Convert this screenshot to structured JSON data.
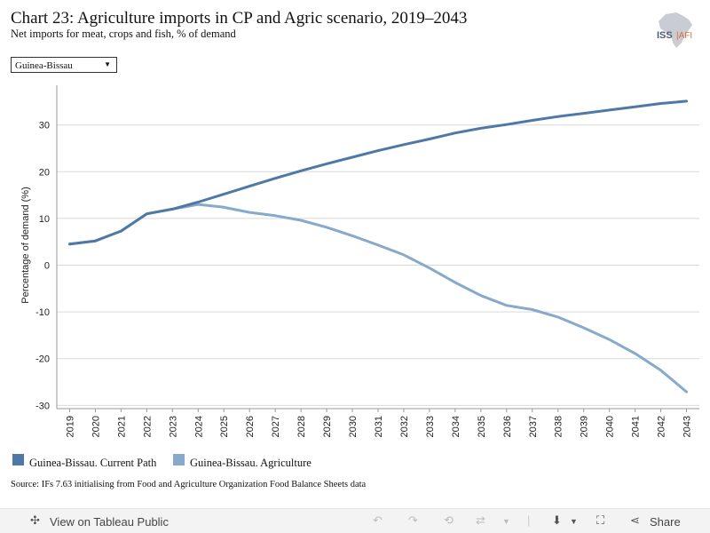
{
  "header": {
    "title": "Chart 23: Agriculture imports in CP and Agric scenario, 2019–2043",
    "subtitle": "Net imports for meat, crops and fish, % of demand",
    "logo_text": "ISS|AFI"
  },
  "filter": {
    "selected": "Guinea-Bissau"
  },
  "colors": {
    "current_path": "#4e79a7",
    "agriculture": "#86a9cc",
    "grid": "#d9d9d9"
  },
  "chart_data": {
    "type": "line",
    "x": [
      "2019",
      "2020",
      "2021",
      "2022",
      "2023",
      "2024",
      "2025",
      "2026",
      "2027",
      "2028",
      "2029",
      "2030",
      "2031",
      "2032",
      "2033",
      "2034",
      "2035",
      "2036",
      "2037",
      "2038",
      "2039",
      "2040",
      "2041",
      "2042",
      "2043"
    ],
    "series": [
      {
        "name": "Guinea-Bissau. Current Path",
        "values": [
          4.5,
          5.2,
          7.3,
          11.0,
          12.0,
          13.5,
          15.2,
          16.9,
          18.6,
          20.2,
          21.7,
          23.1,
          24.5,
          25.8,
          27.0,
          28.3,
          29.3,
          30.1,
          31.0,
          31.8,
          32.5,
          33.2,
          33.9,
          34.6,
          35.1
        ]
      },
      {
        "name": "Guinea-Bissau. Agriculture",
        "values": [
          4.5,
          5.2,
          7.3,
          11.0,
          12.0,
          13.0,
          12.4,
          11.3,
          10.6,
          9.6,
          8.1,
          6.3,
          4.3,
          2.2,
          -0.6,
          -3.7,
          -6.5,
          -8.6,
          -9.5,
          -11.1,
          -13.4,
          -15.9,
          -18.9,
          -22.5,
          -27.1
        ]
      }
    ],
    "ylabel": "Percentage of demand (%)",
    "xlabel": "",
    "yticks": [
      30,
      20,
      10,
      0,
      -10,
      -20,
      -30
    ],
    "ylim": [
      -30.7,
      38.5
    ],
    "grid": true,
    "legend": "bottom-left"
  },
  "source": "Source: IFs 7.63 initialising from Food and Agriculture Organization Food Balance Sheets data",
  "toolbar": {
    "view_label": "View on Tableau Public",
    "share_label": "Share"
  }
}
